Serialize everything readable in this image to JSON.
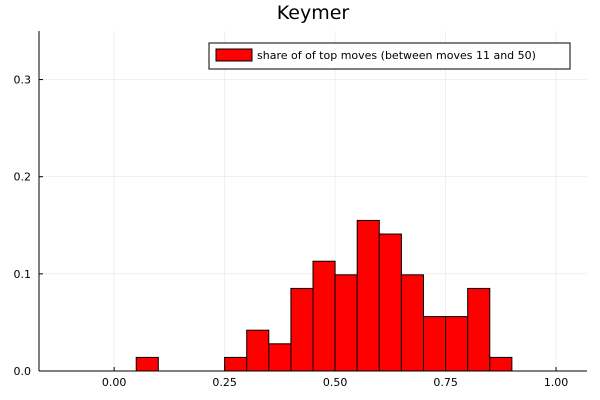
{
  "chart_data": {
    "type": "bar",
    "title": "Keymer",
    "xlabel": "",
    "ylabel": "",
    "xlim": [
      -0.17,
      1.07
    ],
    "ylim": [
      0,
      0.35
    ],
    "xticks": [
      0.0,
      0.25,
      0.5,
      0.75,
      1.0
    ],
    "xtick_labels": [
      "0.00",
      "0.25",
      "0.50",
      "0.75",
      "1.00"
    ],
    "yticks": [
      0.0,
      0.1,
      0.2,
      0.3
    ],
    "ytick_labels": [
      "0.0",
      "0.1",
      "0.2",
      "0.3"
    ],
    "grid": true,
    "legend_position": "top-right",
    "bin_width": 0.05,
    "series": [
      {
        "name": "share of of top moves (between moves 11 and 50)",
        "color": "#ff0000",
        "bins": [
          {
            "x0": 0.05,
            "x1": 0.1,
            "value": 0.014
          },
          {
            "x0": 0.25,
            "x1": 0.3,
            "value": 0.014
          },
          {
            "x0": 0.3,
            "x1": 0.35,
            "value": 0.042
          },
          {
            "x0": 0.35,
            "x1": 0.4,
            "value": 0.028
          },
          {
            "x0": 0.4,
            "x1": 0.45,
            "value": 0.085
          },
          {
            "x0": 0.45,
            "x1": 0.5,
            "value": 0.113
          },
          {
            "x0": 0.5,
            "x1": 0.55,
            "value": 0.099
          },
          {
            "x0": 0.55,
            "x1": 0.6,
            "value": 0.155
          },
          {
            "x0": 0.6,
            "x1": 0.65,
            "value": 0.141
          },
          {
            "x0": 0.65,
            "x1": 0.7,
            "value": 0.099
          },
          {
            "x0": 0.7,
            "x1": 0.75,
            "value": 0.056
          },
          {
            "x0": 0.75,
            "x1": 0.8,
            "value": 0.056
          },
          {
            "x0": 0.8,
            "x1": 0.85,
            "value": 0.085
          },
          {
            "x0": 0.85,
            "x1": 0.9,
            "value": 0.014
          }
        ]
      }
    ]
  }
}
